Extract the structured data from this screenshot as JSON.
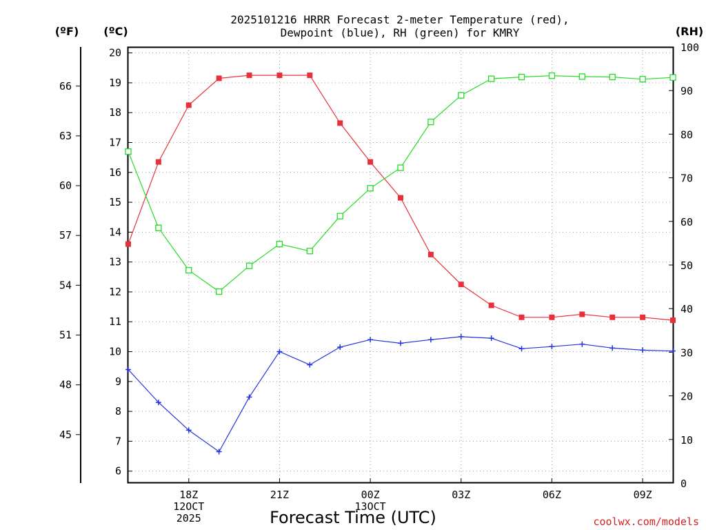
{
  "chart_data": {
    "type": "line",
    "title_line1": "2025101216 HRRR Forecast 2-meter Temperature (red),",
    "title_line2": "Dewpoint (blue), RH (green) for KMRY",
    "xlabel": "Forecast Time (UTC)",
    "credit": "coolwx.com/models",
    "units": {
      "fahrenheit": "(ºF)",
      "celsius": "(ºC)",
      "rh": "(RH)"
    },
    "x_hours": [
      16,
      17,
      18,
      19,
      20,
      21,
      22,
      23,
      24,
      25,
      26,
      27,
      28,
      29,
      30,
      31,
      32,
      33,
      34
    ],
    "x_range": [
      16,
      34
    ],
    "x_ticks": [
      {
        "hour": 18,
        "lines": [
          "18Z",
          "12OCT",
          "2025"
        ]
      },
      {
        "hour": 21,
        "lines": [
          "21Z"
        ]
      },
      {
        "hour": 24,
        "lines": [
          "00Z",
          "13OCT"
        ]
      },
      {
        "hour": 27,
        "lines": [
          "03Z"
        ]
      },
      {
        "hour": 30,
        "lines": [
          "06Z"
        ]
      },
      {
        "hour": 33,
        "lines": [
          "09Z"
        ]
      }
    ],
    "celsius_axis": {
      "range": [
        5.6,
        20.2
      ],
      "ticks": [
        6,
        7,
        8,
        9,
        10,
        11,
        12,
        13,
        14,
        15,
        16,
        17,
        18,
        19,
        20
      ]
    },
    "fahrenheit_axis": {
      "ticks": [
        45,
        48,
        51,
        54,
        57,
        60,
        63,
        66
      ]
    },
    "rh_axis": {
      "range": [
        0,
        100
      ],
      "ticks": [
        0,
        10,
        20,
        30,
        40,
        50,
        60,
        70,
        80,
        90,
        100
      ]
    },
    "series": [
      {
        "name": "Temperature",
        "axis": "celsius",
        "color": "#e8303a",
        "marker": "filled-square",
        "values": [
          13.6,
          16.35,
          18.25,
          19.15,
          19.25,
          19.25,
          19.25,
          17.65,
          16.35,
          15.15,
          13.25,
          12.25,
          11.55,
          11.15,
          11.15,
          11.25,
          11.15,
          11.15,
          11.05
        ]
      },
      {
        "name": "Dewpoint",
        "axis": "celsius",
        "color": "#2233dd",
        "marker": "plus",
        "values": [
          9.4,
          8.3,
          7.37,
          6.65,
          8.48,
          10.0,
          9.56,
          10.15,
          10.4,
          10.28,
          10.4,
          10.5,
          10.45,
          10.1,
          10.17,
          10.25,
          10.12,
          10.05,
          10.02
        ]
      },
      {
        "name": "RH",
        "axis": "rh",
        "color": "#22dd22",
        "marker": "open-square",
        "values": [
          76,
          58.5,
          48.8,
          43.9,
          49.8,
          54.8,
          53.2,
          61.2,
          67.6,
          72.3,
          82.8,
          88.9,
          92.7,
          93.1,
          93.4,
          93.2,
          93.1,
          92.6,
          93.0
        ]
      }
    ]
  }
}
